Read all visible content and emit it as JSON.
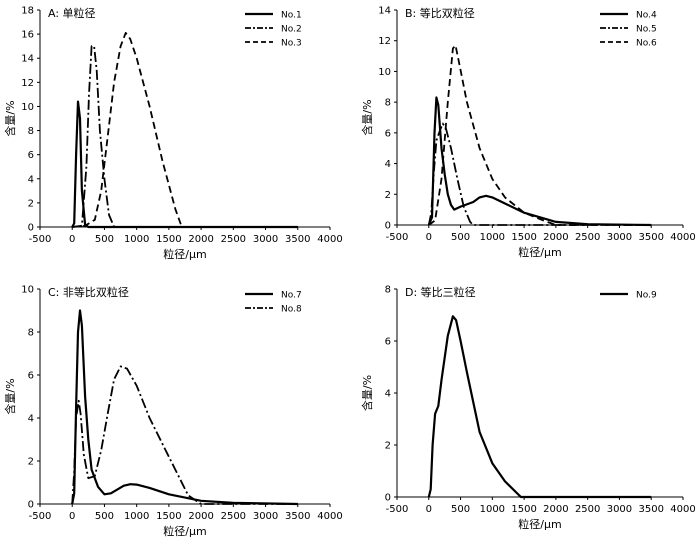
{
  "chart_data": [
    {
      "type": "line",
      "title": "A: 单粒径",
      "xlabel": "粒径/μm",
      "ylabel": "含量/%",
      "xlim": [
        -500,
        4000
      ],
      "ylim": [
        0,
        18
      ],
      "xticks": [
        -500,
        0,
        500,
        1000,
        1500,
        2000,
        2500,
        3000,
        3500,
        4000
      ],
      "yticks": [
        0,
        2,
        4,
        6,
        8,
        10,
        12,
        14,
        16,
        18
      ],
      "legend_position": "top-right",
      "series": [
        {
          "name": "No.1",
          "style": "solid",
          "points": [
            [
              0,
              0
            ],
            [
              30,
              0.3
            ],
            [
              60,
              6
            ],
            [
              90,
              10.4
            ],
            [
              120,
              9
            ],
            [
              150,
              3
            ],
            [
              200,
              0.2
            ],
            [
              250,
              0
            ],
            [
              3500,
              0
            ]
          ]
        },
        {
          "name": "No.2",
          "style": "dashdot",
          "points": [
            [
              0,
              0
            ],
            [
              150,
              0.1
            ],
            [
              220,
              5
            ],
            [
              260,
              11
            ],
            [
              300,
              15
            ],
            [
              340,
              15
            ],
            [
              380,
              13
            ],
            [
              430,
              8
            ],
            [
              500,
              4
            ],
            [
              570,
              1
            ],
            [
              650,
              0
            ],
            [
              3500,
              0
            ]
          ]
        },
        {
          "name": "No.3",
          "style": "dashed",
          "points": [
            [
              0,
              0
            ],
            [
              200,
              0.1
            ],
            [
              350,
              0.6
            ],
            [
              450,
              3
            ],
            [
              550,
              7.5
            ],
            [
              650,
              12
            ],
            [
              750,
              15
            ],
            [
              830,
              16.1
            ],
            [
              900,
              15.6
            ],
            [
              1000,
              14
            ],
            [
              1200,
              10
            ],
            [
              1400,
              5.5
            ],
            [
              1600,
              1.5
            ],
            [
              1700,
              0
            ],
            [
              3500,
              0
            ]
          ]
        }
      ]
    },
    {
      "type": "line",
      "title": "B: 等比双粒径",
      "xlabel": "粒径/μm",
      "ylabel": "含量/%",
      "xlim": [
        -500,
        4000
      ],
      "ylim": [
        0,
        14
      ],
      "xticks": [
        -500,
        0,
        500,
        1000,
        1500,
        2000,
        2500,
        3000,
        3500,
        4000
      ],
      "yticks": [
        0,
        2,
        4,
        6,
        8,
        10,
        12,
        14
      ],
      "legend_position": "top-right",
      "series": [
        {
          "name": "No.4",
          "style": "solid",
          "points": [
            [
              0,
              0
            ],
            [
              50,
              0.5
            ],
            [
              90,
              6
            ],
            [
              120,
              8.3
            ],
            [
              150,
              7.8
            ],
            [
              200,
              5
            ],
            [
              250,
              3.3
            ],
            [
              300,
              2
            ],
            [
              350,
              1.3
            ],
            [
              400,
              1
            ],
            [
              500,
              1.2
            ],
            [
              700,
              1.5
            ],
            [
              800,
              1.8
            ],
            [
              900,
              1.9
            ],
            [
              1000,
              1.8
            ],
            [
              1200,
              1.4
            ],
            [
              1500,
              0.8
            ],
            [
              2000,
              0.2
            ],
            [
              2500,
              0.05
            ],
            [
              3500,
              0
            ]
          ]
        },
        {
          "name": "No.5",
          "style": "dashdot",
          "points": [
            [
              0,
              0
            ],
            [
              40,
              0.8
            ],
            [
              80,
              3.5
            ],
            [
              120,
              5.5
            ],
            [
              180,
              6.2
            ],
            [
              220,
              6.6
            ],
            [
              270,
              6.3
            ],
            [
              350,
              5
            ],
            [
              450,
              3
            ],
            [
              550,
              1.2
            ],
            [
              650,
              0.2
            ],
            [
              700,
              0
            ],
            [
              3500,
              0
            ]
          ]
        },
        {
          "name": "No.6",
          "style": "dashed",
          "points": [
            [
              0,
              0
            ],
            [
              100,
              0.3
            ],
            [
              200,
              3
            ],
            [
              300,
              8
            ],
            [
              380,
              11.5
            ],
            [
              420,
              11.7
            ],
            [
              480,
              10.5
            ],
            [
              600,
              8
            ],
            [
              800,
              5
            ],
            [
              1000,
              3
            ],
            [
              1200,
              1.8
            ],
            [
              1500,
              0.8
            ],
            [
              1800,
              0.3
            ],
            [
              2000,
              0
            ],
            [
              3500,
              0
            ]
          ]
        }
      ]
    },
    {
      "type": "line",
      "title": "C: 非等比双粒径",
      "xlabel": "粒径/μm",
      "ylabel": "含量/%",
      "xlim": [
        -500,
        4000
      ],
      "ylim": [
        0,
        10
      ],
      "xticks": [
        -500,
        0,
        500,
        1000,
        1500,
        2000,
        2500,
        3000,
        3500,
        4000
      ],
      "yticks": [
        0,
        2,
        4,
        6,
        8,
        10
      ],
      "legend_position": "top-right",
      "series": [
        {
          "name": "No.7",
          "style": "solid",
          "points": [
            [
              0,
              0
            ],
            [
              30,
              0.5
            ],
            [
              60,
              4.5
            ],
            [
              90,
              8
            ],
            [
              120,
              9
            ],
            [
              150,
              8.3
            ],
            [
              200,
              5
            ],
            [
              250,
              3
            ],
            [
              300,
              1.6
            ],
            [
              400,
              0.8
            ],
            [
              500,
              0.45
            ],
            [
              600,
              0.5
            ],
            [
              800,
              0.85
            ],
            [
              900,
              0.92
            ],
            [
              1000,
              0.9
            ],
            [
              1200,
              0.75
            ],
            [
              1500,
              0.45
            ],
            [
              2000,
              0.15
            ],
            [
              2500,
              0.05
            ],
            [
              3500,
              0
            ]
          ]
        },
        {
          "name": "No.8",
          "style": "dashdot",
          "points": [
            [
              0,
              0
            ],
            [
              30,
              1.5
            ],
            [
              60,
              4
            ],
            [
              100,
              4.8
            ],
            [
              130,
              4.2
            ],
            [
              180,
              2.3
            ],
            [
              250,
              1.2
            ],
            [
              350,
              1.3
            ],
            [
              450,
              2.5
            ],
            [
              550,
              4.2
            ],
            [
              650,
              5.8
            ],
            [
              750,
              6.4
            ],
            [
              850,
              6.3
            ],
            [
              1000,
              5.5
            ],
            [
              1200,
              4
            ],
            [
              1400,
              2.8
            ],
            [
              1600,
              1.6
            ],
            [
              1800,
              0.4
            ],
            [
              2000,
              0
            ],
            [
              3500,
              0
            ]
          ]
        }
      ]
    },
    {
      "type": "line",
      "title": "D: 等比三粒径",
      "xlabel": "粒径/μm",
      "ylabel": "含量/%",
      "xlim": [
        -500,
        4000
      ],
      "ylim": [
        0,
        8
      ],
      "xticks": [
        -500,
        0,
        500,
        1000,
        1500,
        2000,
        2500,
        3000,
        3500,
        4000
      ],
      "yticks": [
        0,
        2,
        4,
        6,
        8
      ],
      "legend_position": "top-right",
      "series": [
        {
          "name": "No.9",
          "style": "solid",
          "points": [
            [
              0,
              0
            ],
            [
              30,
              0.3
            ],
            [
              60,
              2
            ],
            [
              100,
              3.2
            ],
            [
              150,
              3.5
            ],
            [
              200,
              4.5
            ],
            [
              300,
              6.2
            ],
            [
              380,
              6.95
            ],
            [
              430,
              6.8
            ],
            [
              500,
              6
            ],
            [
              600,
              4.8
            ],
            [
              800,
              2.5
            ],
            [
              1000,
              1.3
            ],
            [
              1200,
              0.6
            ],
            [
              1450,
              0
            ],
            [
              3500,
              0
            ]
          ]
        }
      ]
    }
  ]
}
